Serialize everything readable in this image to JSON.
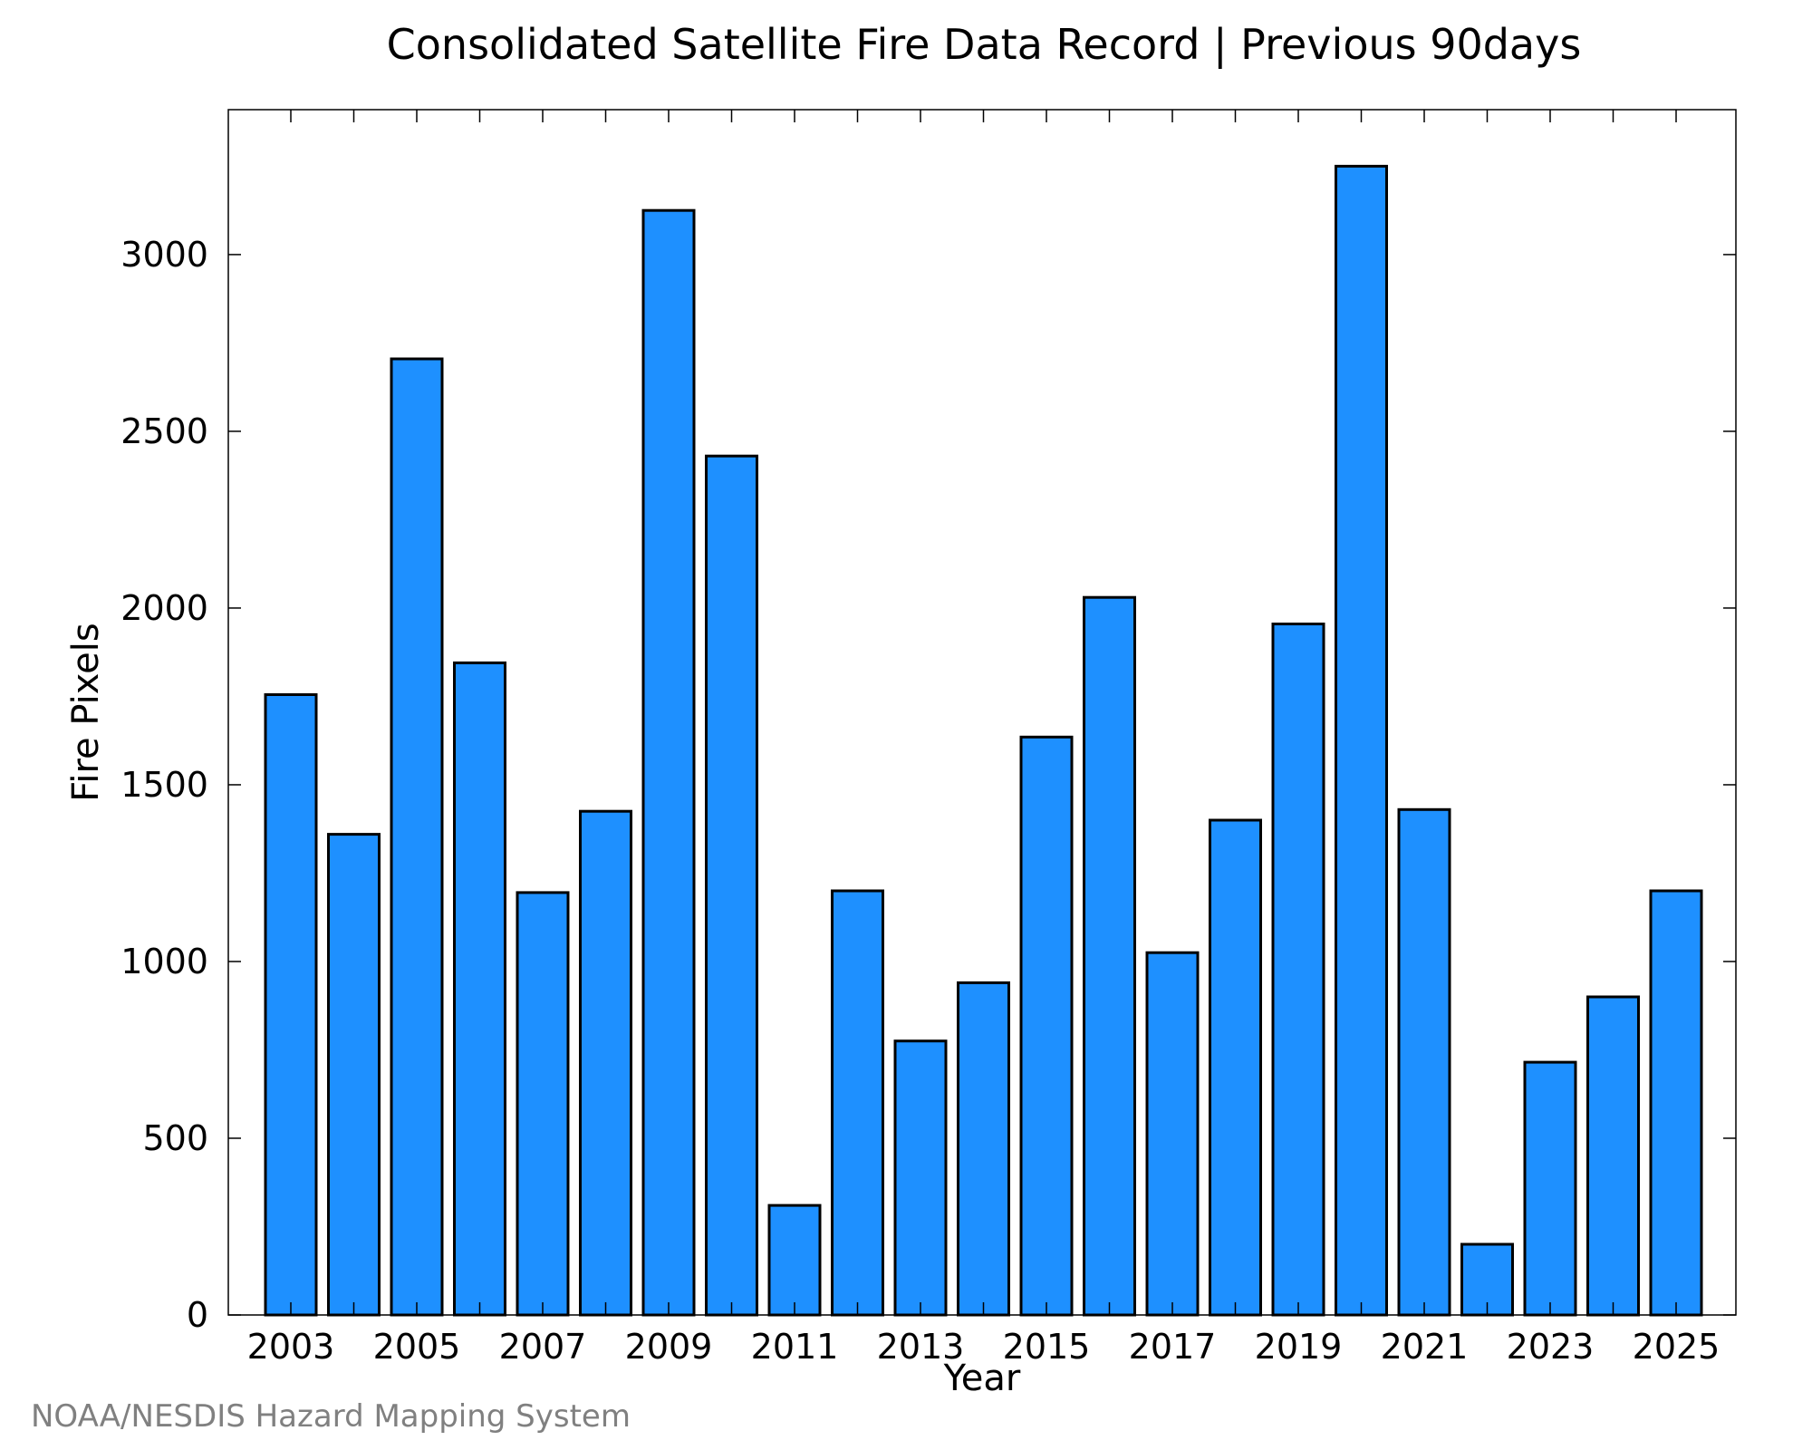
{
  "chart_data": {
    "type": "bar",
    "title": "Consolidated Satellite Fire Data Record | Previous 90days",
    "xlabel": "Year",
    "ylabel": "Fire Pixels",
    "categories": [
      "2003",
      "2004",
      "2005",
      "2006",
      "2007",
      "2008",
      "2009",
      "2010",
      "2011",
      "2012",
      "2013",
      "2014",
      "2015",
      "2016",
      "2017",
      "2018",
      "2019",
      "2020",
      "2021",
      "2022",
      "2023",
      "2024",
      "2025"
    ],
    "values": [
      1755,
      1360,
      2705,
      1845,
      1195,
      1425,
      3125,
      2430,
      310,
      1200,
      775,
      940,
      1635,
      2030,
      1025,
      1400,
      1955,
      3250,
      1430,
      200,
      715,
      900,
      1200
    ],
    "x_tick_labels": [
      "2003",
      "2005",
      "2007",
      "2009",
      "2011",
      "2013",
      "2015",
      "2017",
      "2019",
      "2021",
      "2023",
      "2025"
    ],
    "y_ticks": [
      0,
      500,
      1000,
      1500,
      2000,
      2500,
      3000
    ],
    "ylim": [
      0,
      3410
    ],
    "grid": false,
    "bar_color": "#1e90ff",
    "edge_color": "#000000"
  },
  "credit": "NOAA/NESDIS Hazard Mapping System"
}
